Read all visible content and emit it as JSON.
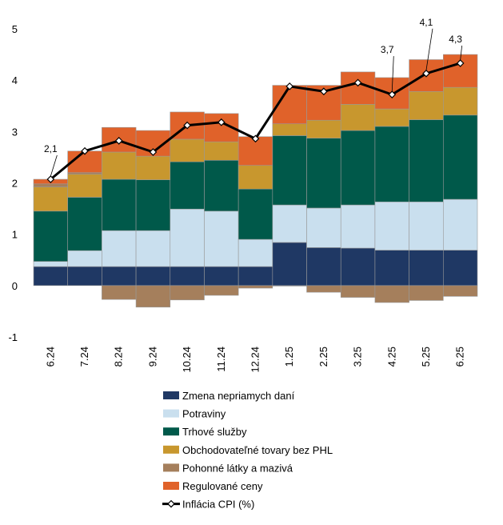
{
  "chart_data": {
    "type": "bar",
    "stacked": true,
    "categories": [
      "6.24",
      "7.24",
      "8.24",
      "9.24",
      "10.24",
      "11.24",
      "12.24",
      "1.25",
      "2.25",
      "3.25",
      "4.25",
      "5.25",
      "6.25"
    ],
    "ylim": [
      -1,
      5
    ],
    "yticks": [
      -1,
      0,
      1,
      2,
      3,
      4,
      5
    ],
    "grid": false,
    "legend": "bottom",
    "series": [
      {
        "name": "Zmena nepriamych daní",
        "color": "#1f3864",
        "values": [
          0.37,
          0.37,
          0.37,
          0.37,
          0.37,
          0.37,
          0.37,
          0.84,
          0.74,
          0.73,
          0.69,
          0.69,
          0.69
        ]
      },
      {
        "name": "Potraviny",
        "color": "#c9dfee",
        "values": [
          0.1,
          0.31,
          0.7,
          0.7,
          1.12,
          1.08,
          0.53,
          0.73,
          0.77,
          0.84,
          0.94,
          0.94,
          0.99
        ]
      },
      {
        "name": "Trhové služby",
        "color": "#00594a",
        "values": [
          0.98,
          1.04,
          1.0,
          0.99,
          0.92,
          0.99,
          0.98,
          1.35,
          1.36,
          1.45,
          1.47,
          1.6,
          1.64
        ]
      },
      {
        "name": "Obchodovateľné tovary bez PHL",
        "color": "#c8972e",
        "values": [
          0.47,
          0.45,
          0.53,
          0.46,
          0.44,
          0.36,
          0.46,
          0.23,
          0.35,
          0.51,
          0.34,
          0.55,
          0.54
        ]
      },
      {
        "name": "Pohonné látky a mazivá",
        "color": "#a57f5c",
        "values": [
          0.06,
          0.03,
          -0.27,
          -0.42,
          -0.28,
          -0.19,
          -0.05,
          -0.01,
          -0.13,
          -0.23,
          -0.33,
          -0.29,
          -0.21
        ]
      },
      {
        "name": "Regulované ceny",
        "color": "#e0622a",
        "values": [
          0.09,
          0.42,
          0.48,
          0.5,
          0.53,
          0.55,
          0.56,
          0.75,
          0.68,
          0.63,
          0.61,
          0.62,
          0.64
        ]
      },
      {
        "name": "Inflácia CPI (%)",
        "type": "line",
        "color": "#000000",
        "values": [
          2.07,
          2.62,
          2.82,
          2.6,
          3.12,
          3.18,
          2.86,
          3.88,
          3.78,
          3.95,
          3.72,
          4.13,
          4.33
        ],
        "value_labels": [
          "2,1",
          null,
          null,
          null,
          null,
          null,
          null,
          null,
          null,
          null,
          "3,7",
          "4,1",
          "4,3"
        ]
      }
    ]
  }
}
